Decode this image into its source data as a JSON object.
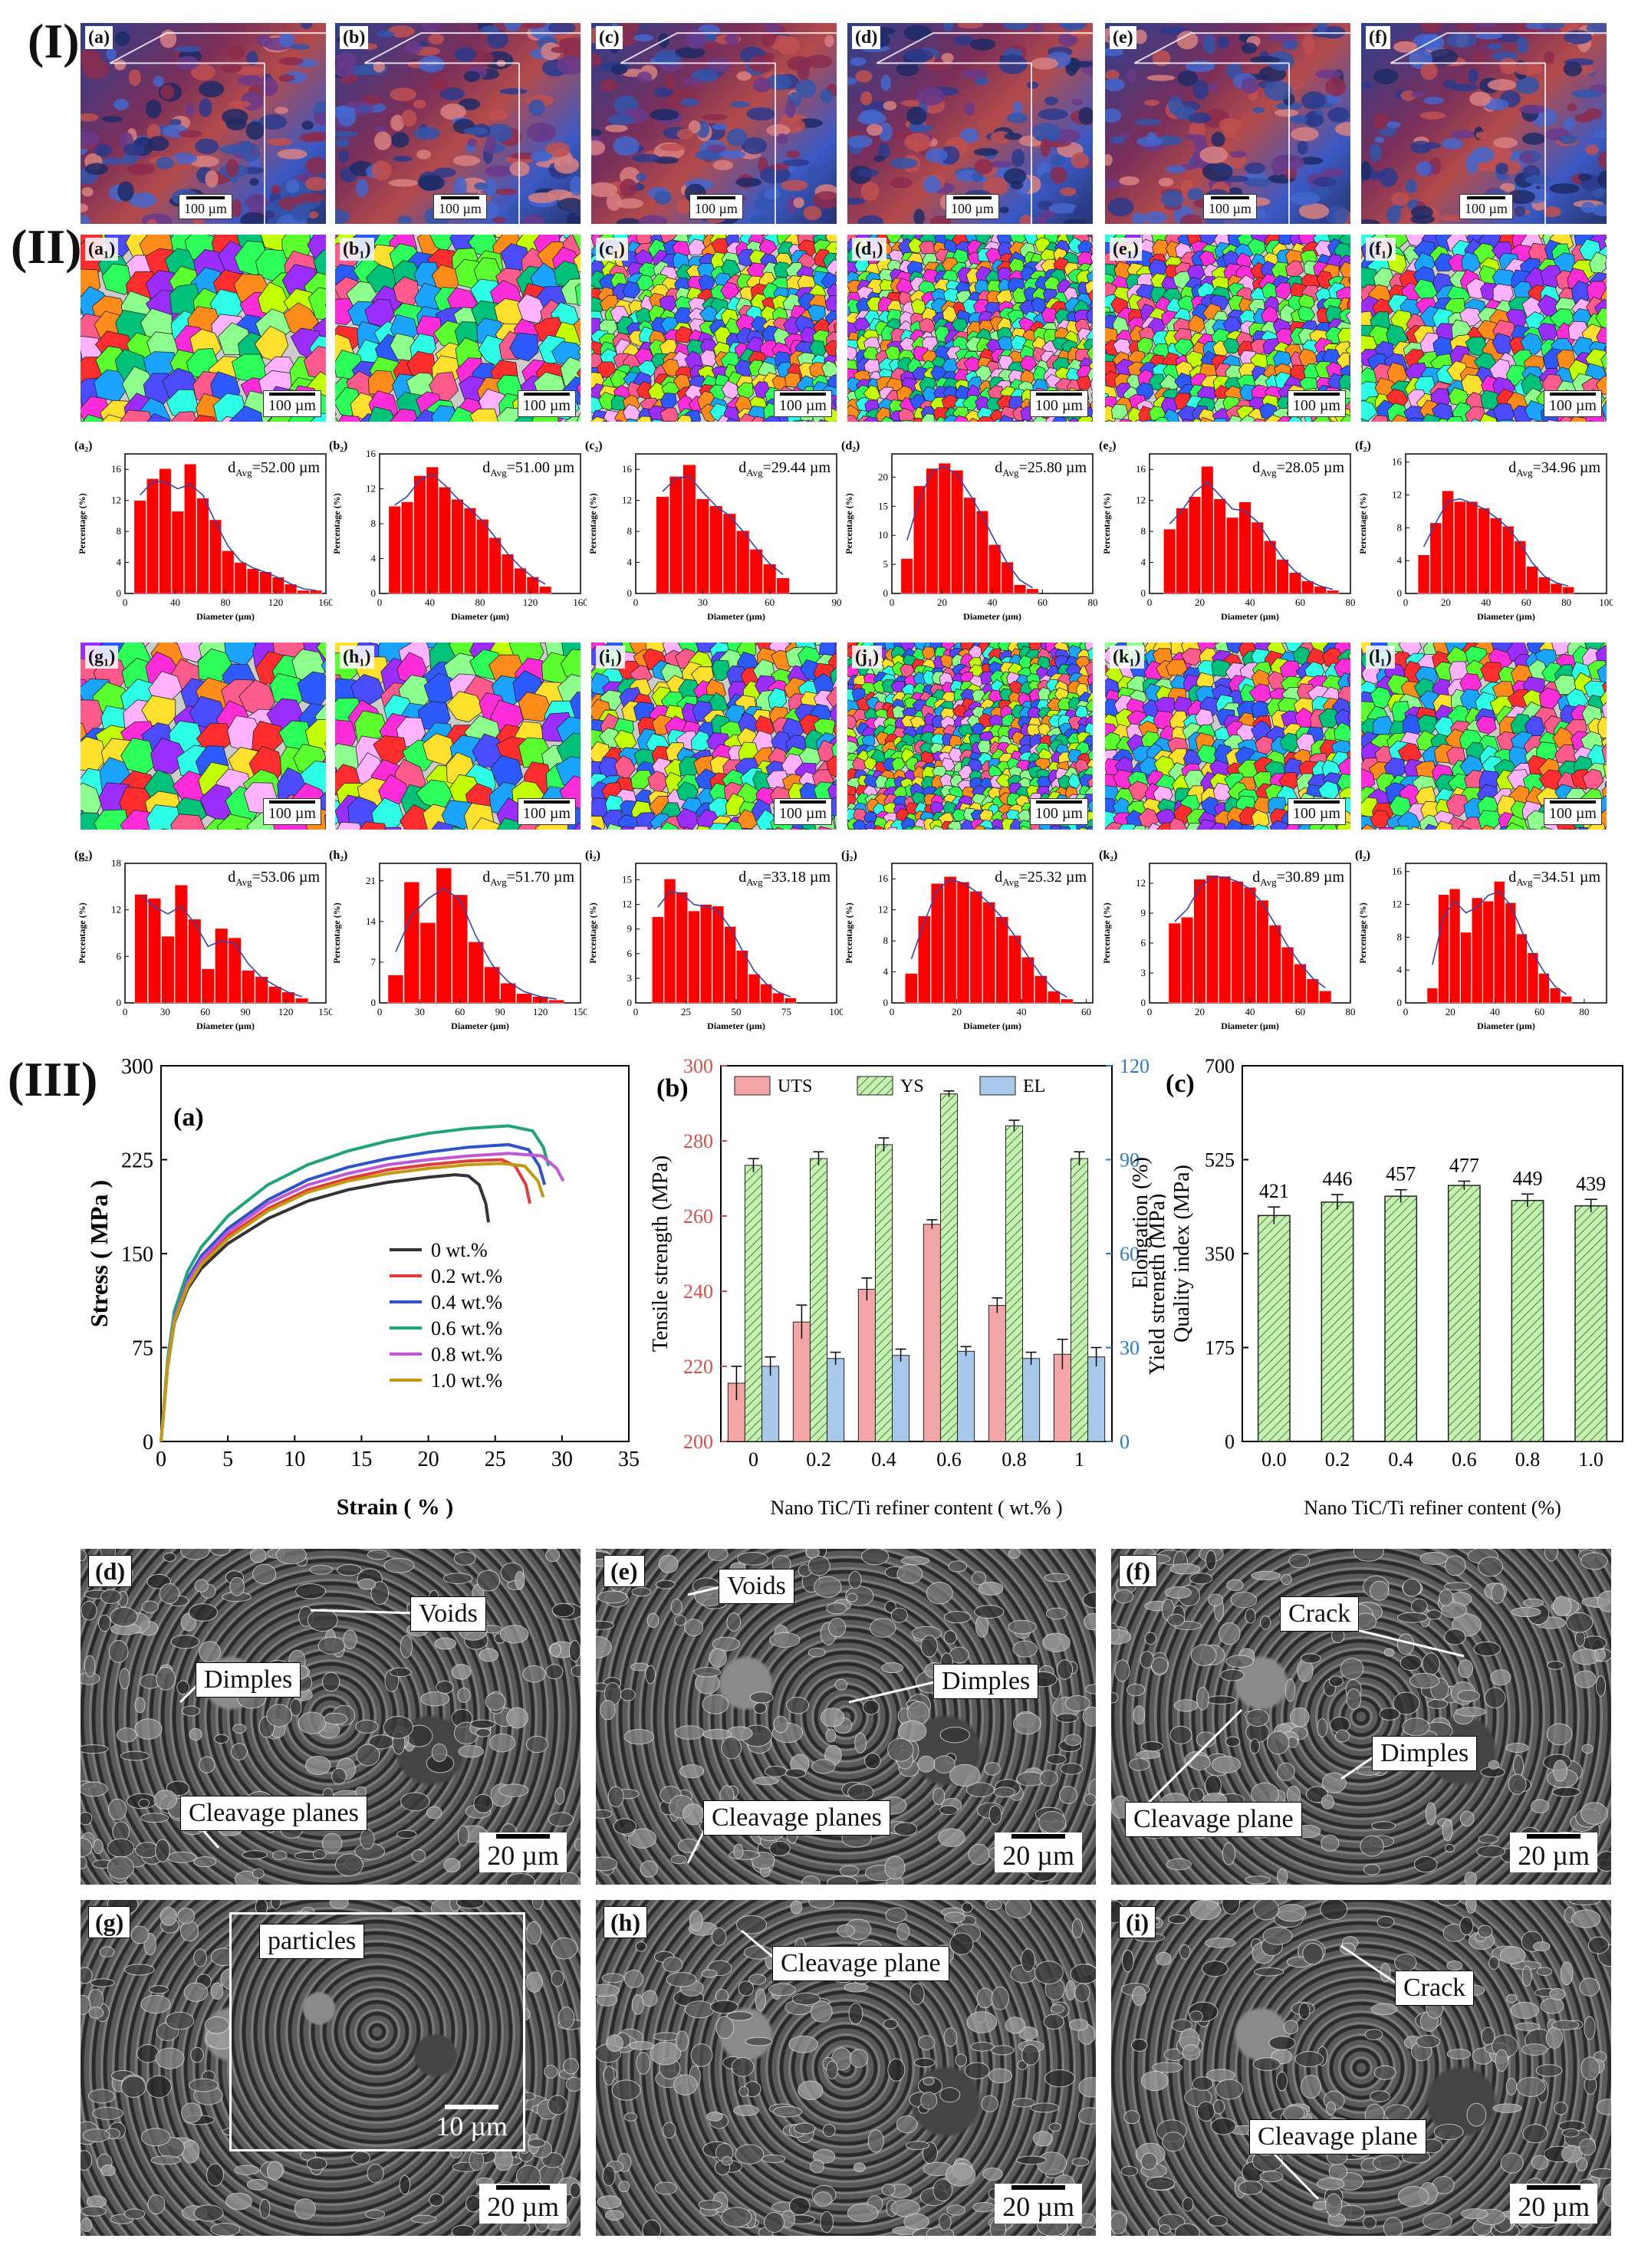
{
  "section_labels": {
    "I": "(I)",
    "II": "(II)",
    "III": "(III)"
  },
  "cubes": {
    "labels": [
      "(a)",
      "(b)",
      "(c)",
      "(d)",
      "(e)",
      "(f)"
    ],
    "scale": "100 µm",
    "top_scale": "100 µm"
  },
  "ebsd_row1": {
    "labels": [
      "(a₁)",
      "(b₁)",
      "(c₁)",
      "(d₁)",
      "(e₁)",
      "(f₁)"
    ],
    "scale": "100 µm"
  },
  "ebsd_row2": {
    "labels": [
      "(g₁)",
      "(h₁)",
      "(i₁)",
      "(j₁)",
      "(k₁)",
      "(l₁)"
    ],
    "scale": "100 µm"
  },
  "hist_common": {
    "xlabel": "Diameter (µm)",
    "ylabel": "Percentage (%)"
  },
  "chart_data": [
    {
      "type": "bar",
      "id": "a2",
      "label": "(a₂)",
      "davg": "d_Avg=52.00 µm",
      "davg_main": "d",
      "davg_sub": "Avg",
      "davg_rest": "=52.00 µm",
      "xticks": [
        0,
        40,
        80,
        120,
        160
      ],
      "yticks": [
        0,
        4,
        8,
        12,
        16
      ],
      "xlim": [
        0,
        160
      ],
      "ylim": [
        0,
        18
      ],
      "x": [
        12,
        22,
        32,
        42,
        52,
        62,
        72,
        82,
        92,
        102,
        112,
        122,
        132,
        142,
        152
      ],
      "values": [
        12,
        14.8,
        16.1,
        10.6,
        16.7,
        12.3,
        9.5,
        5.5,
        4.0,
        3.2,
        2.8,
        2.1,
        1.2,
        0.4,
        0.4
      ],
      "xlabel": "Diameter (µm)",
      "ylabel": "Percentage (%)"
    },
    {
      "type": "bar",
      "id": "b2",
      "label": "(b₂)",
      "davg": "d_Avg=51.00 µm",
      "davg_main": "d",
      "davg_sub": "Avg",
      "davg_rest": "=51.00 µm",
      "xticks": [
        0,
        40,
        80,
        120,
        160
      ],
      "yticks": [
        0,
        4,
        8,
        12,
        16
      ],
      "xlim": [
        0,
        160
      ],
      "ylim": [
        0,
        16
      ],
      "x": [
        12,
        22,
        32,
        42,
        52,
        62,
        72,
        82,
        92,
        102,
        112,
        122,
        132
      ],
      "values": [
        10,
        10.5,
        13.5,
        14.5,
        12.2,
        10.8,
        9.8,
        8.5,
        6.4,
        4.5,
        2.9,
        1.9,
        0.8
      ],
      "xlabel": "Diameter (µm)",
      "ylabel": "Percentage (%)"
    },
    {
      "type": "bar",
      "id": "c2",
      "label": "(c₂)",
      "davg": "d_Avg=29.44 µm",
      "davg_main": "d",
      "davg_sub": "Avg",
      "davg_rest": "=29.44 µm",
      "xticks": [
        0,
        30,
        60,
        90
      ],
      "yticks": [
        0,
        4,
        8,
        12,
        16
      ],
      "xlim": [
        0,
        90
      ],
      "ylim": [
        0,
        18
      ],
      "x": [
        12,
        18,
        24,
        30,
        36,
        42,
        48,
        54,
        60,
        66
      ],
      "values": [
        12.5,
        15.1,
        16.6,
        12.2,
        11.3,
        10.3,
        8.1,
        5.7,
        3.8,
        2.0
      ],
      "xlabel": "Diameter (µm)",
      "ylabel": "Percentage (%)"
    },
    {
      "type": "bar",
      "id": "d2",
      "label": "(d₂)",
      "davg": "d_Avg=25.80 µm",
      "davg_main": "d",
      "davg_sub": "Avg",
      "davg_rest": "=25.80 µm",
      "xticks": [
        0,
        20,
        40,
        60,
        80
      ],
      "yticks": [
        0,
        5,
        10,
        15,
        20
      ],
      "xlim": [
        0,
        80
      ],
      "ylim": [
        0,
        24
      ],
      "x": [
        6,
        11,
        16,
        21,
        26,
        31,
        36,
        41,
        46,
        51,
        56
      ],
      "values": [
        6,
        18.5,
        21.5,
        22.4,
        21.2,
        16.5,
        14.2,
        8.4,
        5.4,
        1.5,
        0.8
      ],
      "xlabel": "Diameter (µm)",
      "ylabel": "Percentage (%)"
    },
    {
      "type": "bar",
      "id": "e2",
      "label": "(e₂)",
      "davg": "d_Avg=28.05 µm",
      "davg_main": "d",
      "davg_sub": "Avg",
      "davg_rest": "=28.05 µm",
      "xticks": [
        0,
        20,
        40,
        60,
        80
      ],
      "yticks": [
        0,
        4,
        8,
        12,
        16
      ],
      "xlim": [
        0,
        80
      ],
      "ylim": [
        0,
        18
      ],
      "x": [
        8,
        13,
        18,
        23,
        28,
        33,
        38,
        43,
        48,
        53,
        58,
        63,
        68,
        73
      ],
      "values": [
        8.3,
        11,
        12.5,
        16.4,
        12.2,
        9.8,
        11.8,
        9.2,
        6.8,
        4.4,
        2.7,
        1.6,
        0.9,
        0.4
      ],
      "xlabel": "Diameter (µm)",
      "ylabel": "Percentage (%)"
    },
    {
      "type": "bar",
      "id": "f2",
      "label": "(f₂)",
      "davg": "d_Avg=34.96 µm",
      "davg_main": "d",
      "davg_sub": "Avg",
      "davg_rest": "=34.96 µm",
      "xticks": [
        0,
        20,
        40,
        60,
        80,
        100
      ],
      "yticks": [
        0,
        4,
        8,
        12,
        16
      ],
      "xlim": [
        0,
        100
      ],
      "ylim": [
        0,
        17
      ],
      "x": [
        9,
        15,
        21,
        27,
        33,
        39,
        45,
        51,
        57,
        63,
        69,
        75,
        81
      ],
      "values": [
        4.7,
        8.6,
        12.5,
        11.2,
        11.2,
        10.4,
        9.2,
        8.2,
        6.4,
        3.3,
        2.0,
        1.2,
        0.8
      ],
      "xlabel": "Diameter (µm)",
      "ylabel": "Percentage (%)"
    },
    {
      "type": "bar",
      "id": "g2",
      "label": "(g₂)",
      "davg": "d_Avg=53.06 µm",
      "davg_main": "d",
      "davg_sub": "Avg",
      "davg_rest": "=53.06 µm",
      "xticks": [
        0,
        30,
        60,
        90,
        120,
        150
      ],
      "yticks": [
        0,
        6,
        12,
        18
      ],
      "xlim": [
        0,
        150
      ],
      "ylim": [
        0,
        18
      ],
      "x": [
        12,
        22,
        32,
        42,
        52,
        62,
        72,
        82,
        92,
        102,
        112,
        122,
        132
      ],
      "values": [
        14,
        13.5,
        8.6,
        15.2,
        10.8,
        4.4,
        9.6,
        8.4,
        4.2,
        3.4,
        2.1,
        1.4,
        0.6
      ],
      "xlabel": "Diameter (µm)",
      "ylabel": "Percentage (%)"
    },
    {
      "type": "bar",
      "id": "h2",
      "label": "(h₂)",
      "davg": "d_Avg=51.70 µm",
      "davg_main": "d",
      "davg_sub": "Avg",
      "davg_rest": "=51.70 µm",
      "xticks": [
        0,
        30,
        60,
        90,
        120,
        150
      ],
      "yticks": [
        0,
        7,
        14,
        21
      ],
      "xlim": [
        0,
        150
      ],
      "ylim": [
        0,
        24
      ],
      "x": [
        12,
        24,
        36,
        48,
        60,
        72,
        84,
        96,
        108,
        120,
        132
      ],
      "values": [
        4.8,
        20.8,
        13.8,
        23.2,
        18.6,
        10.5,
        6.2,
        3.4,
        1.6,
        1.1,
        0.5
      ],
      "xlabel": "Diameter (µm)",
      "ylabel": "Percentage (%)"
    },
    {
      "type": "bar",
      "id": "i2",
      "label": "(i₂)",
      "davg": "d_Avg=33.18 µm",
      "davg_main": "d",
      "davg_sub": "Avg",
      "davg_rest": "=33.18 µm",
      "xticks": [
        0,
        25,
        50,
        75,
        100
      ],
      "yticks": [
        0,
        3,
        6,
        9,
        12,
        15
      ],
      "xlim": [
        0,
        100
      ],
      "ylim": [
        0,
        17
      ],
      "x": [
        11,
        17,
        23,
        29,
        35,
        41,
        47,
        53,
        59,
        65,
        71,
        77
      ],
      "values": [
        10.5,
        15.1,
        13.5,
        11.2,
        12.0,
        11.8,
        9.3,
        6.4,
        3.5,
        2.3,
        1.2,
        0.6
      ],
      "xlabel": "Diameter (µm)",
      "ylabel": "Percentage (%)"
    },
    {
      "type": "bar",
      "id": "j2",
      "label": "(j₂)",
      "davg": "d_Avg=25.32 µm",
      "davg_main": "d",
      "davg_sub": "Avg",
      "davg_rest": "=25.32 µm",
      "xticks": [
        0,
        20,
        40,
        60
      ],
      "yticks": [
        0,
        4,
        8,
        12,
        16
      ],
      "xlim": [
        0,
        62
      ],
      "ylim": [
        0,
        18
      ],
      "x": [
        6,
        10,
        14,
        18,
        22,
        26,
        30,
        34,
        38,
        42,
        46,
        50,
        54
      ],
      "values": [
        3.8,
        11.2,
        15.4,
        16.3,
        15.6,
        14.4,
        13.0,
        11.1,
        8.7,
        5.9,
        3.5,
        1.5,
        0.5
      ],
      "xlabel": "Diameter (µm)",
      "ylabel": "Percentage (%)"
    },
    {
      "type": "bar",
      "id": "k2",
      "label": "(k₂)",
      "davg": "d_Avg=30.89 µm",
      "davg_main": "d",
      "davg_sub": "Avg",
      "davg_rest": "=30.89 µm",
      "xticks": [
        0,
        20,
        40,
        60,
        80
      ],
      "yticks": [
        0,
        3,
        6,
        9,
        12
      ],
      "xlim": [
        0,
        80
      ],
      "ylim": [
        0,
        14
      ],
      "x": [
        10,
        15,
        20,
        25,
        30,
        35,
        40,
        45,
        50,
        55,
        60,
        65,
        70
      ],
      "values": [
        8,
        8.6,
        12.4,
        12.8,
        12.7,
        12.2,
        11.6,
        10.3,
        7.8,
        5.6,
        3.9,
        2.4,
        1.2
      ],
      "xlabel": "Diameter (µm)",
      "ylabel": "Percentage (%)"
    },
    {
      "type": "bar",
      "id": "l2",
      "label": "(l₂)",
      "davg": "d_Avg=34.51 µm",
      "davg_main": "d",
      "davg_sub": "Avg",
      "davg_rest": "=34.51 µm",
      "xticks": [
        0,
        20,
        40,
        60,
        80
      ],
      "yticks": [
        0,
        4,
        8,
        12,
        16
      ],
      "xlim": [
        0,
        90
      ],
      "ylim": [
        0,
        17
      ],
      "x": [
        12,
        17,
        22,
        27,
        32,
        37,
        42,
        47,
        52,
        57,
        62,
        67,
        72
      ],
      "values": [
        1.8,
        13.2,
        13.9,
        8.6,
        12.8,
        12.4,
        14.8,
        12.2,
        8.4,
        6.1,
        3.6,
        1.8,
        0.8
      ],
      "xlabel": "Diameter (µm)",
      "ylabel": "Percentage (%)"
    },
    {
      "type": "line",
      "id": "IIIa",
      "label": "(a)",
      "xlabel": "Strain ( % )",
      "ylabel": "Stress ( MPa )",
      "xlim": [
        0,
        35
      ],
      "ylim": [
        0,
        300
      ],
      "xticks": [
        0,
        5,
        10,
        15,
        20,
        25,
        30,
        35
      ],
      "yticks": [
        0,
        75,
        150,
        225,
        300
      ],
      "legend_position": "center-right",
      "series": [
        {
          "name": "0 wt.%",
          "color": "#333333",
          "x": [
            0,
            0.5,
            1,
            2,
            3,
            5,
            8,
            11,
            14,
            17,
            20,
            22,
            23,
            23.8,
            24.3,
            24.5
          ],
          "y": [
            0,
            60,
            95,
            122,
            138,
            158,
            178,
            192,
            201,
            207,
            211,
            213,
            212,
            205,
            190,
            175
          ]
        },
        {
          "name": "0.2 wt.%",
          "color": "#e23b3b",
          "x": [
            0,
            0.5,
            1,
            2,
            3,
            5,
            8,
            11,
            14,
            17,
            20,
            23,
            25.5,
            26.5,
            27.3,
            27.6
          ],
          "y": [
            0,
            62,
            98,
            126,
            143,
            164,
            186,
            201,
            210,
            217,
            221,
            224,
            225,
            220,
            205,
            190
          ]
        },
        {
          "name": "0.4 wt.%",
          "color": "#2e53c9",
          "x": [
            0,
            0.5,
            1,
            2,
            3,
            5,
            8,
            11,
            14,
            17,
            20,
            23,
            26,
            27.5,
            28.3,
            28.7
          ],
          "y": [
            0,
            63,
            100,
            130,
            148,
            170,
            193,
            209,
            219,
            226,
            231,
            235,
            237,
            233,
            220,
            205
          ]
        },
        {
          "name": "0.6 wt.%",
          "color": "#1fa47a",
          "x": [
            0,
            0.5,
            1,
            2,
            3,
            5,
            8,
            11,
            14,
            17,
            20,
            23,
            26,
            27.8,
            28.6,
            29.0
          ],
          "y": [
            0,
            66,
            104,
            136,
            155,
            180,
            205,
            221,
            232,
            240,
            246,
            250,
            252,
            248,
            235,
            220
          ]
        },
        {
          "name": "0.8 wt.%",
          "color": "#c256d6",
          "x": [
            0,
            0.5,
            1,
            2,
            3,
            5,
            8,
            11,
            14,
            17,
            20,
            23,
            26,
            28.5,
            29.6,
            30.1
          ],
          "y": [
            0,
            62,
            98,
            127,
            145,
            167,
            190,
            205,
            214,
            221,
            225,
            228,
            230,
            228,
            218,
            208
          ]
        },
        {
          "name": "1.0 wt.%",
          "color": "#c39a12",
          "x": [
            0,
            0.5,
            1,
            2,
            3,
            5,
            8,
            11,
            14,
            17,
            20,
            23,
            25.5,
            27.2,
            28.2,
            28.6
          ],
          "y": [
            0,
            61,
            96,
            124,
            141,
            162,
            184,
            199,
            208,
            214,
            218,
            221,
            222,
            220,
            208,
            195
          ]
        }
      ]
    },
    {
      "type": "bar",
      "id": "IIIb",
      "label": "(b)",
      "xlabel": "Nano TiC/Ti refiner content ( wt.% )",
      "ylabel_left": "Tensile strength (MPa)",
      "ylabel_right_1": "Elongation (%)",
      "ylabel_right_2": "Yield strength (MPa)",
      "categories": [
        "0",
        "0.2",
        "0.4",
        "0.6",
        "0.8",
        "1"
      ],
      "ylim_left": [
        200,
        300
      ],
      "yticks_left": [
        200,
        220,
        240,
        260,
        280,
        300
      ],
      "ylim_right": [
        0,
        120
      ],
      "yticks_right": [
        0,
        30,
        60,
        90,
        120
      ],
      "legend": [
        "UTS",
        "YS",
        "EL"
      ],
      "series": [
        {
          "name": "UTS",
          "axis": "left",
          "color": "#f4a6a6",
          "values": [
            215.5,
            231.8,
            240.5,
            257.8,
            236.2,
            223.2
          ],
          "err": [
            4.5,
            4.5,
            3.0,
            1.2,
            2.0,
            4.0
          ]
        },
        {
          "name": "YS",
          "axis": "left",
          "color": "#a8e08f",
          "values": [
            273.5,
            275.3,
            279.0,
            292.5,
            284.0,
            275.3
          ],
          "err": [
            1.8,
            1.8,
            1.8,
            0.8,
            1.5,
            1.8
          ]
        },
        {
          "name": "EL",
          "axis": "right",
          "color": "#a7c8e8",
          "values": [
            24.0,
            26.5,
            27.5,
            28.8,
            26.5,
            27.0
          ],
          "err": [
            3.0,
            2.0,
            2.0,
            1.5,
            2.0,
            3.0
          ]
        }
      ]
    },
    {
      "type": "bar",
      "id": "IIIc",
      "label": "(c)",
      "xlabel": "Nano TiC/Ti refiner content (%)",
      "ylabel": "Quality index (MPa)",
      "categories": [
        "0.0",
        "0.2",
        "0.4",
        "0.6",
        "0.8",
        "1.0"
      ],
      "values": [
        421,
        446,
        457,
        477,
        449,
        439
      ],
      "data_labels": [
        "421",
        "446",
        "457",
        "477",
        "449",
        "439"
      ],
      "err": [
        16,
        14,
        12,
        8,
        12,
        12
      ],
      "ylim": [
        0,
        700
      ],
      "yticks": [
        0,
        175,
        350,
        525,
        700
      ]
    }
  ],
  "sem": {
    "scale": "20 µm",
    "inset_scale": "10 µm",
    "panels": [
      {
        "label": "(d)",
        "annots": [
          "Voids",
          "Dimples",
          "Cleavage planes"
        ]
      },
      {
        "label": "(e)",
        "annots": [
          "Voids",
          "Dimples",
          "Cleavage planes"
        ]
      },
      {
        "label": "(f)",
        "annots": [
          "Crack",
          "Dimples",
          "Cleavage plane"
        ]
      },
      {
        "label": "(g)",
        "annots": [
          "particles"
        ]
      },
      {
        "label": "(h)",
        "annots": [
          "Cleavage plane"
        ]
      },
      {
        "label": "(i)",
        "annots": [
          "Crack",
          "Cleavage plane"
        ]
      }
    ]
  },
  "colors": {
    "bar_red": "#ff0000",
    "fit_blue": "#3344aa",
    "quality_green": "#a8e08f"
  }
}
